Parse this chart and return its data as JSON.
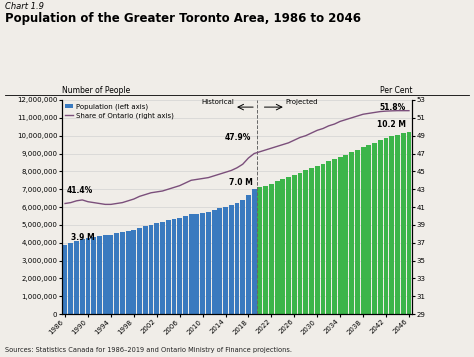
{
  "title_small": "Chart 1.9",
  "title": "Population of the Greater Toronto Area, 1986 to 2046",
  "ylabel_left": "Number of People",
  "ylabel_right": "Per Cent",
  "source": "Sources: Statistics Canada for 1986–2019 and Ontario Ministry of Finance projections.",
  "years": [
    1986,
    1987,
    1988,
    1989,
    1990,
    1991,
    1992,
    1993,
    1994,
    1995,
    1996,
    1997,
    1998,
    1999,
    2000,
    2001,
    2002,
    2003,
    2004,
    2005,
    2006,
    2007,
    2008,
    2009,
    2010,
    2011,
    2012,
    2013,
    2014,
    2015,
    2016,
    2017,
    2018,
    2019,
    2020,
    2021,
    2022,
    2023,
    2024,
    2025,
    2026,
    2027,
    2028,
    2029,
    2030,
    2031,
    2032,
    2033,
    2034,
    2035,
    2036,
    2037,
    2038,
    2039,
    2040,
    2041,
    2042,
    2043,
    2044,
    2045,
    2046
  ],
  "population": [
    3850000,
    3990000,
    4120000,
    4200000,
    4260000,
    4310000,
    4360000,
    4410000,
    4460000,
    4520000,
    4580000,
    4650000,
    4720000,
    4820000,
    4920000,
    5020000,
    5100000,
    5180000,
    5260000,
    5330000,
    5410000,
    5500000,
    5590000,
    5600000,
    5650000,
    5720000,
    5810000,
    5920000,
    6020000,
    6120000,
    6250000,
    6400000,
    6700000,
    7000000,
    7100000,
    7200000,
    7300000,
    7450000,
    7600000,
    7700000,
    7800000,
    7920000,
    8050000,
    8180000,
    8310000,
    8430000,
    8560000,
    8680000,
    8810000,
    8940000,
    9060000,
    9190000,
    9340000,
    9470000,
    9600000,
    9730000,
    9860000,
    9990000,
    10050000,
    10130000,
    10200000
  ],
  "share_ontario": [
    41.4,
    41.5,
    41.7,
    41.8,
    41.6,
    41.5,
    41.4,
    41.3,
    41.3,
    41.4,
    41.5,
    41.7,
    41.9,
    42.2,
    42.4,
    42.6,
    42.7,
    42.8,
    43.0,
    43.2,
    43.4,
    43.7,
    44.0,
    44.1,
    44.2,
    44.3,
    44.5,
    44.7,
    44.9,
    45.1,
    45.4,
    45.8,
    46.5,
    47.0,
    47.2,
    47.4,
    47.6,
    47.8,
    48.0,
    48.2,
    48.5,
    48.8,
    49.0,
    49.3,
    49.6,
    49.8,
    50.1,
    50.3,
    50.6,
    50.8,
    51.0,
    51.2,
    51.4,
    51.5,
    51.6,
    51.7,
    51.75,
    51.78,
    51.8,
    51.8,
    51.8
  ],
  "historical_cutoff_year": 2019,
  "bar_color_historical": "#3a7abf",
  "bar_color_projected": "#3cb54a",
  "line_color": "#7b4f7b",
  "ylim_left": [
    0,
    12000000
  ],
  "ylim_right": [
    29,
    53
  ],
  "yticks_left": [
    0,
    1000000,
    2000000,
    3000000,
    4000000,
    5000000,
    6000000,
    7000000,
    8000000,
    9000000,
    10000000,
    11000000,
    12000000
  ],
  "yticks_right": [
    29,
    31,
    33,
    35,
    37,
    39,
    41,
    43,
    45,
    47,
    49,
    51,
    53
  ],
  "background_color": "#f0ede8",
  "plot_bg_color": "#f0ede8"
}
